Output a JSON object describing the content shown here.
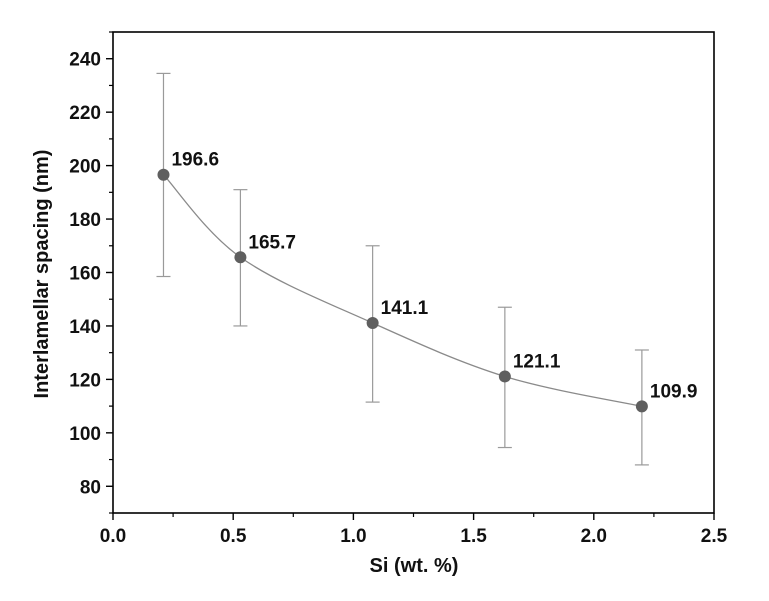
{
  "chart_data": {
    "type": "scatter",
    "xlabel": "Si (wt. %)",
    "ylabel": "Interlamellar spacing (nm)",
    "xlim": [
      0.0,
      2.5
    ],
    "ylim": [
      70,
      250
    ],
    "xticks": [
      0.0,
      0.5,
      1.0,
      1.5,
      2.0,
      2.5
    ],
    "xtick_labels": [
      "0.0",
      "0.5",
      "1.0",
      "1.5",
      "2.0",
      "2.5"
    ],
    "yticks": [
      80,
      100,
      120,
      140,
      160,
      180,
      200,
      220,
      240
    ],
    "ytick_labels": [
      "80",
      "100",
      "120",
      "140",
      "160",
      "180",
      "200",
      "220",
      "240"
    ],
    "grid": false,
    "smooth_line": true,
    "series": [
      {
        "x": [
          0.21,
          0.53,
          1.08,
          1.63,
          2.2
        ],
        "y": [
          196.6,
          165.7,
          141.1,
          121.1,
          109.9
        ],
        "err_low": [
          158.5,
          140.0,
          111.5,
          94.5,
          88.0
        ],
        "err_high": [
          234.5,
          191.0,
          170.0,
          147.0,
          131.0
        ],
        "labels": [
          "196.6",
          "165.7",
          "141.1",
          "121.1",
          "109.9"
        ]
      }
    ],
    "colors": {
      "marker": "#5f5f5f",
      "line": "#8a8a8a",
      "errorbar": "#9a9a9a",
      "axis": "#000000"
    }
  }
}
